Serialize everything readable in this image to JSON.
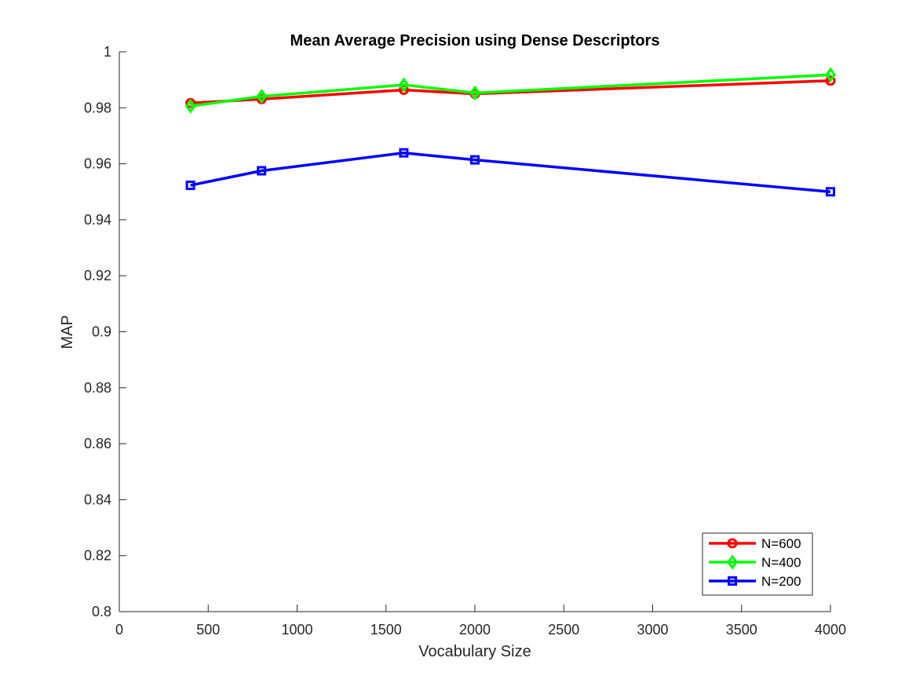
{
  "chart_data": {
    "type": "line",
    "title": "Mean Average Precision using Dense Descriptors",
    "xlabel": "Vocabulary Size",
    "ylabel": "MAP",
    "xlim": [
      0,
      4000
    ],
    "ylim": [
      0.8,
      1.0
    ],
    "xticks": [
      0,
      500,
      1000,
      1500,
      2000,
      2500,
      3000,
      3500,
      4000
    ],
    "yticks": [
      0.8,
      0.82,
      0.84,
      0.86,
      0.88,
      0.9,
      0.92,
      0.94,
      0.96,
      0.98,
      1
    ],
    "xtick_labels": [
      "0",
      "500",
      "1000",
      "1500",
      "2000",
      "2500",
      "3000",
      "3500",
      "4000"
    ],
    "ytick_labels": [
      "0.8",
      "0.82",
      "0.84",
      "0.86",
      "0.88",
      "0.9",
      "0.92",
      "0.94",
      "0.96",
      "0.98",
      "1"
    ],
    "x": [
      400,
      800,
      1600,
      2000,
      4000
    ],
    "grid": false,
    "legend_position": "bottom-right",
    "series": [
      {
        "name": "N=600",
        "color": "#ff0000",
        "marker": "circle",
        "values": [
          0.9817,
          0.9831,
          0.9864,
          0.985,
          0.9897
        ]
      },
      {
        "name": "N=400",
        "color": "#00ff00",
        "marker": "diamond",
        "values": [
          0.9806,
          0.9841,
          0.9882,
          0.9853,
          0.9918
        ]
      },
      {
        "name": "N=200",
        "color": "#0000ff",
        "marker": "square",
        "values": [
          0.9523,
          0.9575,
          0.9639,
          0.9614,
          0.95
        ]
      }
    ]
  }
}
